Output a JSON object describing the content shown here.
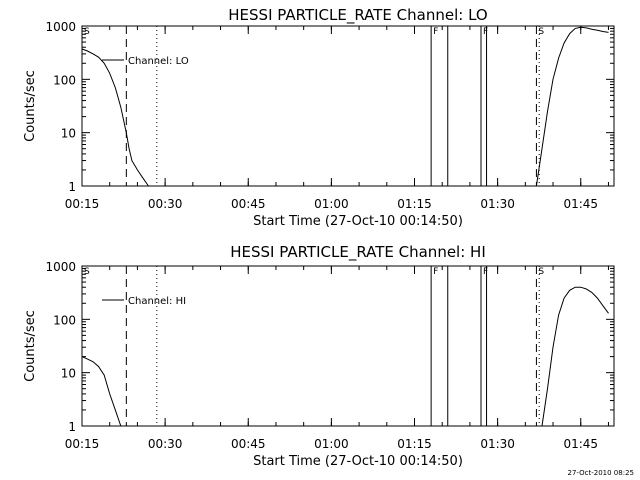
{
  "chart_data": [
    {
      "type": "line",
      "title": "HESSI PARTICLE_RATE Channel: LO",
      "xlabel": "Start Time (27-Oct-10 00:14:50)",
      "ylabel": "Counts/sec",
      "y_scale": "log",
      "xlim": [
        "00:15",
        "01:51"
      ],
      "ylim": [
        1,
        1000
      ],
      "x_ticks": [
        "00:15",
        "00:30",
        "00:45",
        "01:00",
        "01:15",
        "01:30",
        "01:45"
      ],
      "y_ticks": [
        "1",
        "10",
        "100",
        "1000"
      ],
      "grid": false,
      "legend": {
        "position": "top-left",
        "entries": [
          "Channel: LO"
        ]
      },
      "series": [
        {
          "name": "Channel: LO",
          "segments": [
            {
              "x": [
                "00:15",
                "00:16",
                "00:17",
                "00:18",
                "00:19",
                "00:20",
                "00:21",
                "00:22",
                "00:23",
                "00:23:30",
                "00:24",
                "00:25",
                "00:26",
                "00:27"
              ],
              "y": [
                370,
                340,
                300,
                260,
                200,
                130,
                70,
                30,
                10,
                5,
                3,
                2,
                1.4,
                1
              ]
            },
            {
              "x": [
                "01:37",
                "01:38",
                "01:39",
                "01:40",
                "01:41",
                "01:42",
                "01:43",
                "01:44",
                "01:45",
                "01:46",
                "01:47",
                "01:48",
                "01:49",
                "01:50"
              ],
              "y": [
                1,
                5,
                25,
                100,
                250,
                480,
                720,
                900,
                950,
                920,
                870,
                830,
                790,
                760
              ]
            }
          ]
        }
      ],
      "markers": [
        {
          "x": "00:15",
          "style": "solid",
          "label": "S"
        },
        {
          "x": "00:23",
          "style": "dashed",
          "label": ""
        },
        {
          "x": "00:28:30",
          "style": "dotted",
          "label": ""
        },
        {
          "x": "01:18",
          "style": "solid",
          "label": "F"
        },
        {
          "x": "01:21",
          "style": "solid",
          "label": ""
        },
        {
          "x": "01:27",
          "style": "solid",
          "label": "F"
        },
        {
          "x": "01:28",
          "style": "solid",
          "label": ""
        },
        {
          "x": "01:37",
          "style": "dashed",
          "label": "S"
        },
        {
          "x": "01:37:30",
          "style": "dotted",
          "label": ""
        },
        {
          "x": "01:51",
          "style": "dashdot",
          "label": ""
        }
      ]
    },
    {
      "type": "line",
      "title": "HESSI PARTICLE_RATE Channel: HI",
      "xlabel": "Start Time (27-Oct-10 00:14:50)",
      "ylabel": "Counts/sec",
      "y_scale": "log",
      "xlim": [
        "00:15",
        "01:51"
      ],
      "ylim": [
        1,
        1000
      ],
      "x_ticks": [
        "00:15",
        "00:30",
        "00:45",
        "01:00",
        "01:15",
        "01:30",
        "01:45"
      ],
      "y_ticks": [
        "1",
        "10",
        "100",
        "1000"
      ],
      "grid": false,
      "legend": {
        "position": "top-left",
        "entries": [
          "Channel: HI"
        ]
      },
      "series": [
        {
          "name": "Channel: HI",
          "segments": [
            {
              "x": [
                "00:15",
                "00:16",
                "00:17",
                "00:18",
                "00:19",
                "00:20",
                "00:21",
                "00:22"
              ],
              "y": [
                20,
                18,
                16,
                13,
                9,
                4,
                2,
                1
              ]
            },
            {
              "x": [
                "01:38",
                "01:39",
                "01:40",
                "01:41",
                "01:42",
                "01:43",
                "01:44",
                "01:45",
                "01:46",
                "01:47",
                "01:48",
                "01:49",
                "01:50"
              ],
              "y": [
                1,
                5,
                30,
                120,
                250,
                350,
                400,
                400,
                370,
                320,
                250,
                180,
                130
              ]
            }
          ]
        }
      ],
      "markers": [
        {
          "x": "00:15",
          "style": "solid",
          "label": "S"
        },
        {
          "x": "00:23",
          "style": "dashed",
          "label": ""
        },
        {
          "x": "00:28:30",
          "style": "dotted",
          "label": ""
        },
        {
          "x": "01:18",
          "style": "solid",
          "label": "F"
        },
        {
          "x": "01:21",
          "style": "solid",
          "label": ""
        },
        {
          "x": "01:27",
          "style": "solid",
          "label": "F"
        },
        {
          "x": "01:28",
          "style": "solid",
          "label": ""
        },
        {
          "x": "01:37",
          "style": "dashed",
          "label": "S"
        },
        {
          "x": "01:37:30",
          "style": "dotted",
          "label": ""
        },
        {
          "x": "01:51",
          "style": "dashdot",
          "label": ""
        }
      ]
    }
  ],
  "footer": {
    "timestamp": "27-Oct-2010 08:25"
  },
  "colors": {
    "foreground": "#000000",
    "background": "#ffffff"
  }
}
